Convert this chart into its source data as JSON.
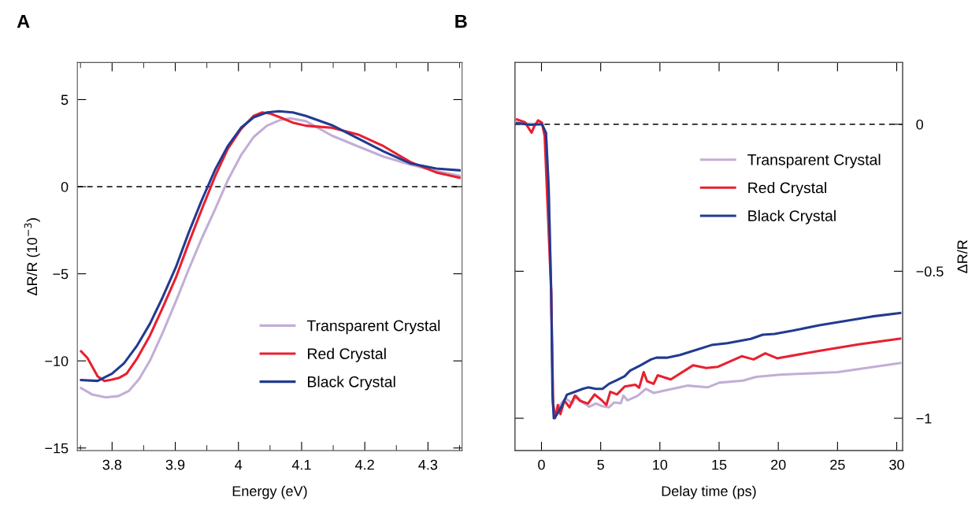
{
  "chart_data": [
    {
      "type": "line",
      "annotations": [
        "A"
      ],
      "xlabel": "Energy (eV)",
      "ylabel": "ΔR/R (10$^{−3}$)",
      "xlim": [
        3.745,
        4.354
      ],
      "xticks": [
        3.8,
        3.9,
        {
          "value": 4,
          "label": "4"
        },
        4.1,
        4.2,
        4.3
      ],
      "ylim": [
        -15.15,
        7.13
      ],
      "yticks": [
        -15,
        -10,
        -5,
        0,
        5
      ],
      "ref_lines": [
        {
          "axis": "y",
          "value": 0,
          "color": "#000000",
          "line_style": "dashed"
        }
      ],
      "legend": "bottom right",
      "grid": false,
      "series": [
        {
          "name": "Transparent Crystal",
          "color": "#c3aed6",
          "x": [
            3.751,
            3.769,
            3.79,
            3.81,
            3.827,
            3.843,
            3.86,
            3.88,
            3.901,
            3.921,
            3.942,
            3.963,
            3.983,
            4.004,
            4.024,
            4.045,
            4.066,
            4.082,
            4.107,
            4.148,
            4.189,
            4.23,
            4.272,
            4.313,
            4.35
          ],
          "values": [
            -11.56,
            -11.94,
            -12.09,
            -12.02,
            -11.71,
            -11.03,
            -9.98,
            -8.39,
            -6.58,
            -4.77,
            -2.96,
            -1.3,
            0.36,
            1.8,
            2.85,
            3.5,
            3.83,
            3.92,
            3.76,
            2.93,
            2.32,
            1.72,
            1.27,
            0.89,
            0.63
          ]
        },
        {
          "name": "Red Crystal",
          "color": "#e8202f",
          "x": [
            3.751,
            3.761,
            3.769,
            3.777,
            3.788,
            3.8,
            3.812,
            3.823,
            3.839,
            3.86,
            3.88,
            3.901,
            3.921,
            3.942,
            3.963,
            3.983,
            4.004,
            4.024,
            4.037,
            4.049,
            4.066,
            4.086,
            4.107,
            4.148,
            4.189,
            4.23,
            4.272,
            4.313,
            4.35
          ],
          "values": [
            -9.45,
            -9.83,
            -10.35,
            -10.88,
            -11.15,
            -11.08,
            -10.96,
            -10.73,
            -9.9,
            -8.54,
            -6.96,
            -5.22,
            -3.26,
            -1.3,
            0.59,
            2.17,
            3.31,
            4.06,
            4.26,
            4.21,
            3.98,
            3.68,
            3.5,
            3.38,
            3.0,
            2.32,
            1.42,
            0.82,
            0.51
          ]
        },
        {
          "name": "Black Crystal",
          "color": "#223b90",
          "x": [
            3.751,
            3.777,
            3.8,
            3.819,
            3.839,
            3.86,
            3.88,
            3.901,
            3.921,
            3.942,
            3.963,
            3.983,
            4.004,
            4.024,
            4.045,
            4.064,
            4.086,
            4.107,
            4.148,
            4.189,
            4.23,
            4.272,
            4.313,
            4.35
          ],
          "values": [
            -11.1,
            -11.15,
            -10.73,
            -10.13,
            -9.15,
            -7.86,
            -6.35,
            -4.62,
            -2.66,
            -0.77,
            0.97,
            2.32,
            3.38,
            3.98,
            4.26,
            4.33,
            4.26,
            4.06,
            3.53,
            2.78,
            2.02,
            1.34,
            1.04,
            0.94
          ]
        }
      ]
    },
    {
      "type": "line",
      "annotations": [
        "B"
      ],
      "xlabel": "Delay time (ps)",
      "y2label": "ΔR/R",
      "xlim": [
        -2.24,
        30.5
      ],
      "xticks": [
        0,
        5,
        10,
        15,
        20,
        25,
        30
      ],
      "y2lim": [
        -1.11,
        0.21
      ],
      "y2ticks": [
        -1,
        -0.5,
        0
      ],
      "ref_lines": [
        {
          "axis": "y2",
          "value": 0,
          "color": "#000000",
          "line_style": "dashed"
        }
      ],
      "legend": "top right",
      "grid": false,
      "series": [
        {
          "name": "Transparent Crystal",
          "color": "#c3aed6",
          "axis": "y2",
          "x": [
            -2.06,
            -0.95,
            0.04,
            0.38,
            0.6,
            0.82,
            0.98,
            1.15,
            1.49,
            2.04,
            2.6,
            2.93,
            3.48,
            4.04,
            4.6,
            5.15,
            5.7,
            6.15,
            6.7,
            6.92,
            7.26,
            8.14,
            8.81,
            9.47,
            10.58,
            12.36,
            14.02,
            15.02,
            17.02,
            18.13,
            20.12,
            25.0,
            30.29
          ],
          "values": [
            0.005,
            0.001,
            0.001,
            -0.03,
            -0.21,
            -0.57,
            -0.95,
            -0.995,
            -0.959,
            -0.932,
            -0.95,
            -0.923,
            -0.946,
            -0.961,
            -0.95,
            -0.959,
            -0.963,
            -0.946,
            -0.949,
            -0.923,
            -0.939,
            -0.923,
            -0.9,
            -0.914,
            -0.904,
            -0.889,
            -0.895,
            -0.879,
            -0.872,
            -0.859,
            -0.852,
            -0.843,
            -0.812
          ]
        },
        {
          "name": "Red Crystal",
          "color": "#e8202f",
          "axis": "y2",
          "x": [
            -2.06,
            -1.4,
            -0.84,
            -0.62,
            -0.29,
            0.04,
            0.27,
            0.82,
            0.98,
            1.15,
            1.38,
            1.6,
            1.93,
            2.37,
            2.82,
            3.26,
            3.93,
            4.48,
            5.04,
            5.48,
            5.81,
            6.37,
            7.03,
            7.92,
            8.25,
            8.63,
            8.92,
            9.47,
            9.81,
            10.92,
            12.8,
            13.91,
            14.91,
            16.91,
            17.91,
            18.9,
            19.9,
            23.45,
            26.78,
            30.29
          ],
          "values": [
            0.016,
            0.007,
            -0.029,
            -0.008,
            0.013,
            0.005,
            -0.04,
            -0.57,
            -0.95,
            -1.0,
            -0.955,
            -0.986,
            -0.94,
            -0.963,
            -0.923,
            -0.941,
            -0.95,
            -0.919,
            -0.937,
            -0.955,
            -0.91,
            -0.919,
            -0.892,
            -0.886,
            -0.896,
            -0.843,
            -0.874,
            -0.883,
            -0.854,
            -0.868,
            -0.82,
            -0.829,
            -0.825,
            -0.789,
            -0.8,
            -0.779,
            -0.796,
            -0.771,
            -0.749,
            -0.729
          ]
        },
        {
          "name": "Black Crystal",
          "color": "#223b90",
          "axis": "y2",
          "x": [
            -2.06,
            -0.95,
            0.04,
            0.38,
            0.6,
            0.82,
            0.93,
            1.04,
            1.26,
            1.7,
            2.15,
            2.82,
            3.48,
            3.93,
            4.6,
            5.15,
            5.7,
            6.37,
            7.03,
            7.48,
            8.36,
            9.25,
            9.7,
            10.58,
            11.69,
            12.8,
            14.36,
            15.69,
            17.68,
            18.68,
            19.68,
            21.23,
            23.45,
            25.67,
            27.89,
            30.29
          ],
          "values": [
            0.004,
            -0.002,
            0,
            -0.03,
            -0.21,
            -0.57,
            -0.92,
            -1.0,
            -0.99,
            -0.96,
            -0.92,
            -0.91,
            -0.9,
            -0.895,
            -0.9,
            -0.9,
            -0.883,
            -0.87,
            -0.857,
            -0.838,
            -0.82,
            -0.8,
            -0.794,
            -0.794,
            -0.785,
            -0.771,
            -0.751,
            -0.745,
            -0.73,
            -0.716,
            -0.713,
            -0.702,
            -0.684,
            -0.669,
            -0.654,
            -0.642
          ]
        }
      ]
    }
  ]
}
